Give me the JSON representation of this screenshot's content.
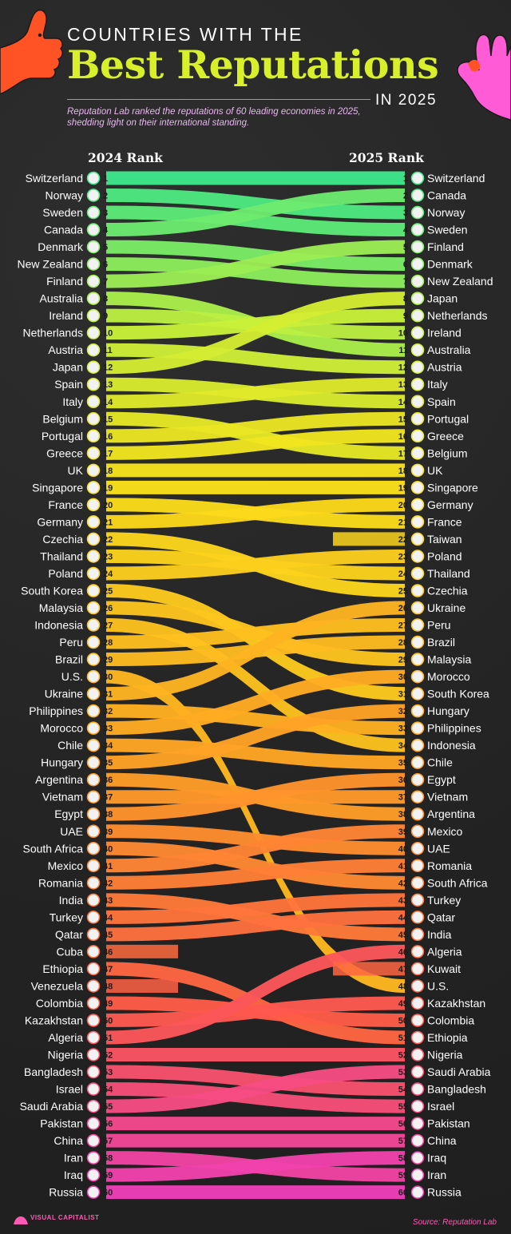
{
  "header": {
    "kicker": "COUNTRIES WITH THE",
    "headline": "Best Reputations",
    "year_tag": "IN 2025",
    "subtitle": "Reputation Lab ranked the reputations of 60 leading economies in 2025, shedding light on their international standing."
  },
  "columns": {
    "left": "2024 Rank",
    "right": "2025 Rank"
  },
  "footer": {
    "brand": "VISUAL CAPITALIST",
    "source": "Source: Reputation Lab"
  },
  "colors": {
    "top": "#3ee88a",
    "upper": "#c8f03a",
    "middle": "#fbe21a",
    "lower": "#ffaa22",
    "bottom": "#ee3fb8"
  },
  "chart_data": {
    "type": "bump",
    "xlabel": "",
    "ylabel": "",
    "categories": [
      "2024 Rank",
      "2025 Rank"
    ],
    "ranks_2024": [
      "Switzerland",
      "Norway",
      "Sweden",
      "Canada",
      "Denmark",
      "New Zealand",
      "Finland",
      "Australia",
      "Ireland",
      "Netherlands",
      "Austria",
      "Japan",
      "Spain",
      "Italy",
      "Belgium",
      "Portugal",
      "Greece",
      "UK",
      "Singapore",
      "France",
      "Germany",
      "Czechia",
      "Thailand",
      "Poland",
      "South Korea",
      "Malaysia",
      "Indonesia",
      "Peru",
      "Brazil",
      "U.S.",
      "Ukraine",
      "Philippines",
      "Morocco",
      "Chile",
      "Hungary",
      "Argentina",
      "Vietnam",
      "Egypt",
      "UAE",
      "South Africa",
      "Mexico",
      "Romania",
      "India",
      "Turkey",
      "Qatar",
      "Cuba",
      "Ethiopia",
      "Venezuela",
      "Colombia",
      "Kazakhstan",
      "Algeria",
      "Nigeria",
      "Bangladesh",
      "Israel",
      "Saudi Arabia",
      "Pakistan",
      "China",
      "Iran",
      "Iraq",
      "Russia"
    ],
    "ranks_2025": [
      "Switzerland",
      "Canada",
      "Norway",
      "Sweden",
      "Finland",
      "Denmark",
      "New Zealand",
      "Japan",
      "Netherlands",
      "Ireland",
      "Australia",
      "Austria",
      "Italy",
      "Spain",
      "Portugal",
      "Greece",
      "Belgium",
      "UK",
      "Singapore",
      "Germany",
      "France",
      "Taiwan",
      "Poland",
      "Thailand",
      "Czechia",
      "Ukraine",
      "Peru",
      "Brazil",
      "Malaysia",
      "Morocco",
      "South Korea",
      "Hungary",
      "Philippines",
      "Indonesia",
      "Chile",
      "Egypt",
      "Vietnam",
      "Argentina",
      "Mexico",
      "UAE",
      "Romania",
      "South Africa",
      "Turkey",
      "Qatar",
      "India",
      "Algeria",
      "Kuwait",
      "U.S.",
      "Kazakhstan",
      "Colombia",
      "Ethiopia",
      "Nigeria",
      "Saudi Arabia",
      "Bangladesh",
      "Israel",
      "Pakistan",
      "China",
      "Iraq",
      "Iran",
      "Russia"
    ]
  }
}
